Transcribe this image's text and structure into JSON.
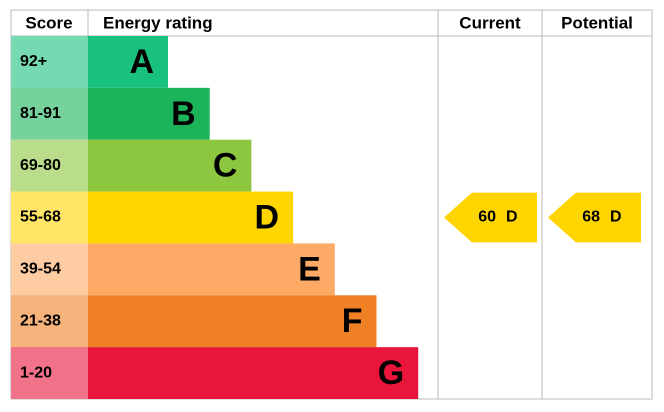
{
  "header": {
    "score": "Score",
    "rating": "Energy rating",
    "current": "Current",
    "potential": "Potential"
  },
  "bands": [
    {
      "score": "92+",
      "letter": "A",
      "color": "#19c17e"
    },
    {
      "score": "81-91",
      "letter": "B",
      "color": "#1cb45a"
    },
    {
      "score": "69-80",
      "letter": "C",
      "color": "#8dc63f"
    },
    {
      "score": "55-68",
      "letter": "D",
      "color": "#ffd500"
    },
    {
      "score": "39-54",
      "letter": "E",
      "color": "#fcaa65"
    },
    {
      "score": "21-38",
      "letter": "F",
      "color": "#ef8023"
    },
    {
      "score": "1-20",
      "letter": "G",
      "color": "#e9153b"
    }
  ],
  "current": {
    "value": 60,
    "letter": "D"
  },
  "potential": {
    "value": 68,
    "letter": "D"
  }
}
